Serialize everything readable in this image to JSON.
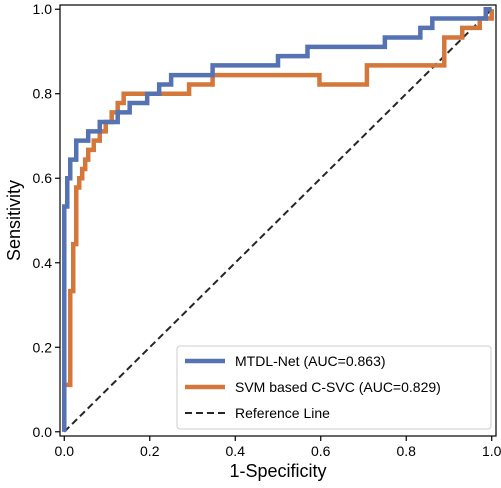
{
  "chart_data": {
    "type": "line",
    "title": "",
    "xlabel": "1-Specificity",
    "ylabel": "Sensitivity",
    "xlim": [
      -0.01,
      1.01
    ],
    "ylim": [
      -0.01,
      1.01
    ],
    "xticks": [
      0.0,
      0.2,
      0.4,
      0.6,
      0.8,
      1.0
    ],
    "yticks": [
      0.0,
      0.2,
      0.4,
      0.6,
      0.8,
      1.0
    ],
    "xtick_labels": [
      "0.0",
      "0.2",
      "0.4",
      "0.6",
      "0.8",
      "1.0"
    ],
    "ytick_labels": [
      "0.0",
      "0.2",
      "0.4",
      "0.6",
      "0.8",
      "1.0"
    ],
    "grid": false,
    "legend_position": "lower-right",
    "series": [
      {
        "name": "MTDL-Net (AUC=0.863)",
        "color": "#5573b3",
        "style": "solid",
        "x": [
          0.0,
          0.0,
          0.0,
          0.0,
          0.007,
          0.007,
          0.007,
          0.014,
          0.014,
          0.028,
          0.028,
          0.056,
          0.056,
          0.083,
          0.083,
          0.125,
          0.125,
          0.153,
          0.153,
          0.194,
          0.194,
          0.222,
          0.222,
          0.25,
          0.25,
          0.292,
          0.292,
          0.347,
          0.347,
          0.5,
          0.5,
          0.569,
          0.569,
          0.722,
          0.722,
          0.75,
          0.75,
          0.75,
          0.764,
          0.764,
          0.833,
          0.833,
          0.861,
          0.861,
          0.931,
          0.931,
          0.972,
          0.972,
          0.986,
          0.986,
          1.0
        ],
        "y": [
          0.0,
          0.222,
          0.444,
          0.533,
          0.533,
          0.578,
          0.6,
          0.6,
          0.644,
          0.644,
          0.689,
          0.689,
          0.711,
          0.711,
          0.733,
          0.733,
          0.756,
          0.756,
          0.778,
          0.778,
          0.8,
          0.8,
          0.822,
          0.822,
          0.844,
          0.844,
          0.844,
          0.844,
          0.867,
          0.867,
          0.889,
          0.889,
          0.911,
          0.911,
          0.911,
          0.911,
          0.911,
          0.933,
          0.933,
          0.933,
          0.933,
          0.956,
          0.956,
          0.978,
          0.978,
          0.978,
          0.978,
          0.978,
          0.978,
          1.0,
          1.0
        ]
      },
      {
        "name": "SVM based C-SVC (AUC=0.829)",
        "color": "#d4773b",
        "style": "solid",
        "x": [
          0.0,
          0.0,
          0.0,
          0.014,
          0.014,
          0.021,
          0.021,
          0.028,
          0.028,
          0.035,
          0.035,
          0.042,
          0.042,
          0.049,
          0.049,
          0.056,
          0.056,
          0.069,
          0.069,
          0.083,
          0.083,
          0.097,
          0.097,
          0.111,
          0.111,
          0.125,
          0.125,
          0.139,
          0.139,
          0.222,
          0.222,
          0.292,
          0.292,
          0.347,
          0.347,
          0.597,
          0.597,
          0.708,
          0.708,
          0.889,
          0.889,
          0.931,
          0.931,
          0.972,
          0.972,
          1.0,
          1.0
        ],
        "y": [
          0.0,
          0.089,
          0.111,
          0.111,
          0.333,
          0.333,
          0.444,
          0.444,
          0.578,
          0.578,
          0.6,
          0.6,
          0.622,
          0.622,
          0.644,
          0.644,
          0.667,
          0.667,
          0.689,
          0.689,
          0.711,
          0.711,
          0.733,
          0.733,
          0.756,
          0.756,
          0.778,
          0.778,
          0.8,
          0.8,
          0.8,
          0.8,
          0.822,
          0.822,
          0.844,
          0.844,
          0.822,
          0.822,
          0.867,
          0.867,
          0.933,
          0.933,
          0.956,
          0.956,
          0.978,
          0.978,
          1.0
        ]
      },
      {
        "name": "Reference Line",
        "color": "#262626",
        "style": "dashed",
        "x": [
          0.0,
          1.0
        ],
        "y": [
          0.0,
          1.0
        ]
      }
    ]
  }
}
